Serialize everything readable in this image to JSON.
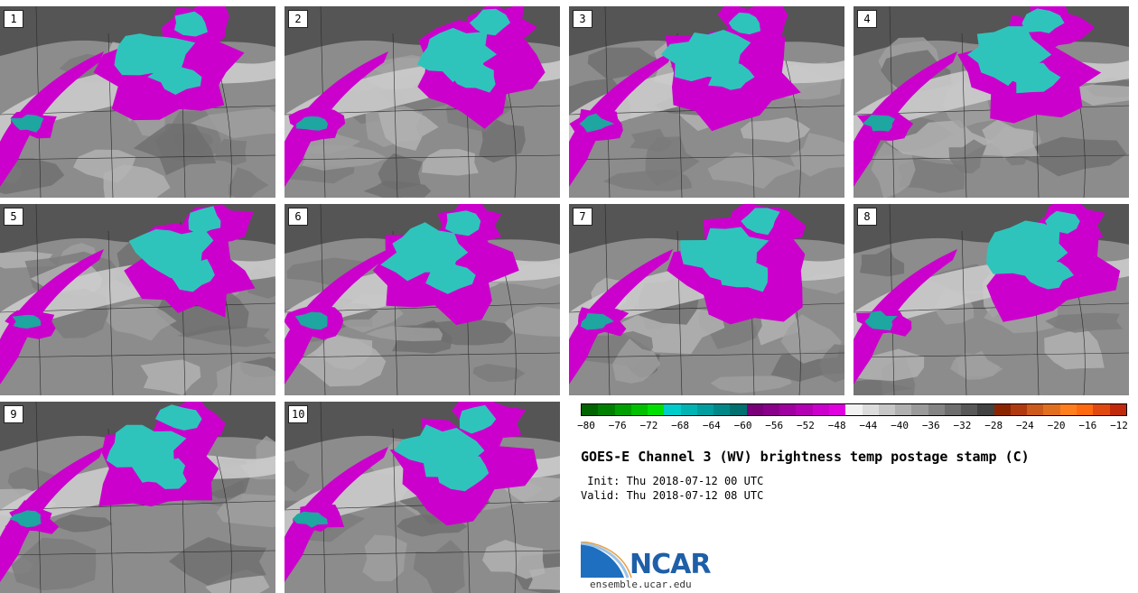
{
  "panels": [
    {
      "label": "1"
    },
    {
      "label": "2"
    },
    {
      "label": "3"
    },
    {
      "label": "4"
    },
    {
      "label": "5"
    },
    {
      "label": "6"
    },
    {
      "label": "7"
    },
    {
      "label": "8"
    },
    {
      "label": "9"
    },
    {
      "label": "10"
    }
  ],
  "colorbar": {
    "ticks": [
      "−80",
      "−76",
      "−72",
      "−68",
      "−64",
      "−60",
      "−56",
      "−52",
      "−48",
      "−44",
      "−40",
      "−36",
      "−32",
      "−28",
      "−24",
      "−20",
      "−16",
      "−12"
    ],
    "colors": [
      "#006400",
      "#008000",
      "#00a000",
      "#00c000",
      "#00e000",
      "#00cccc",
      "#00b4b4",
      "#009e9e",
      "#008888",
      "#007070",
      "#7a007a",
      "#8a008a",
      "#a000a0",
      "#b400b4",
      "#cc00cc",
      "#e000e0",
      "#f2f2f2",
      "#dcdcdc",
      "#c6c6c6",
      "#b0b0b0",
      "#9a9a9a",
      "#848484",
      "#6e6e6e",
      "#585858",
      "#424242",
      "#8b2500",
      "#b03a10",
      "#cc5a1a",
      "#e07020",
      "#ff7f1f",
      "#ff6a10",
      "#e04a10",
      "#c02a0a"
    ]
  },
  "title": "GOES-E Channel 3 (WV) brightness temp postage stamp (C)",
  "init": " Init: Thu 2018-07-12 00 UTC",
  "valid": "Valid: Thu 2018-07-12 08 UTC",
  "logo": {
    "text": "NCAR",
    "site": "ensemble.ucar.edu",
    "color": "#1f5fa8"
  }
}
